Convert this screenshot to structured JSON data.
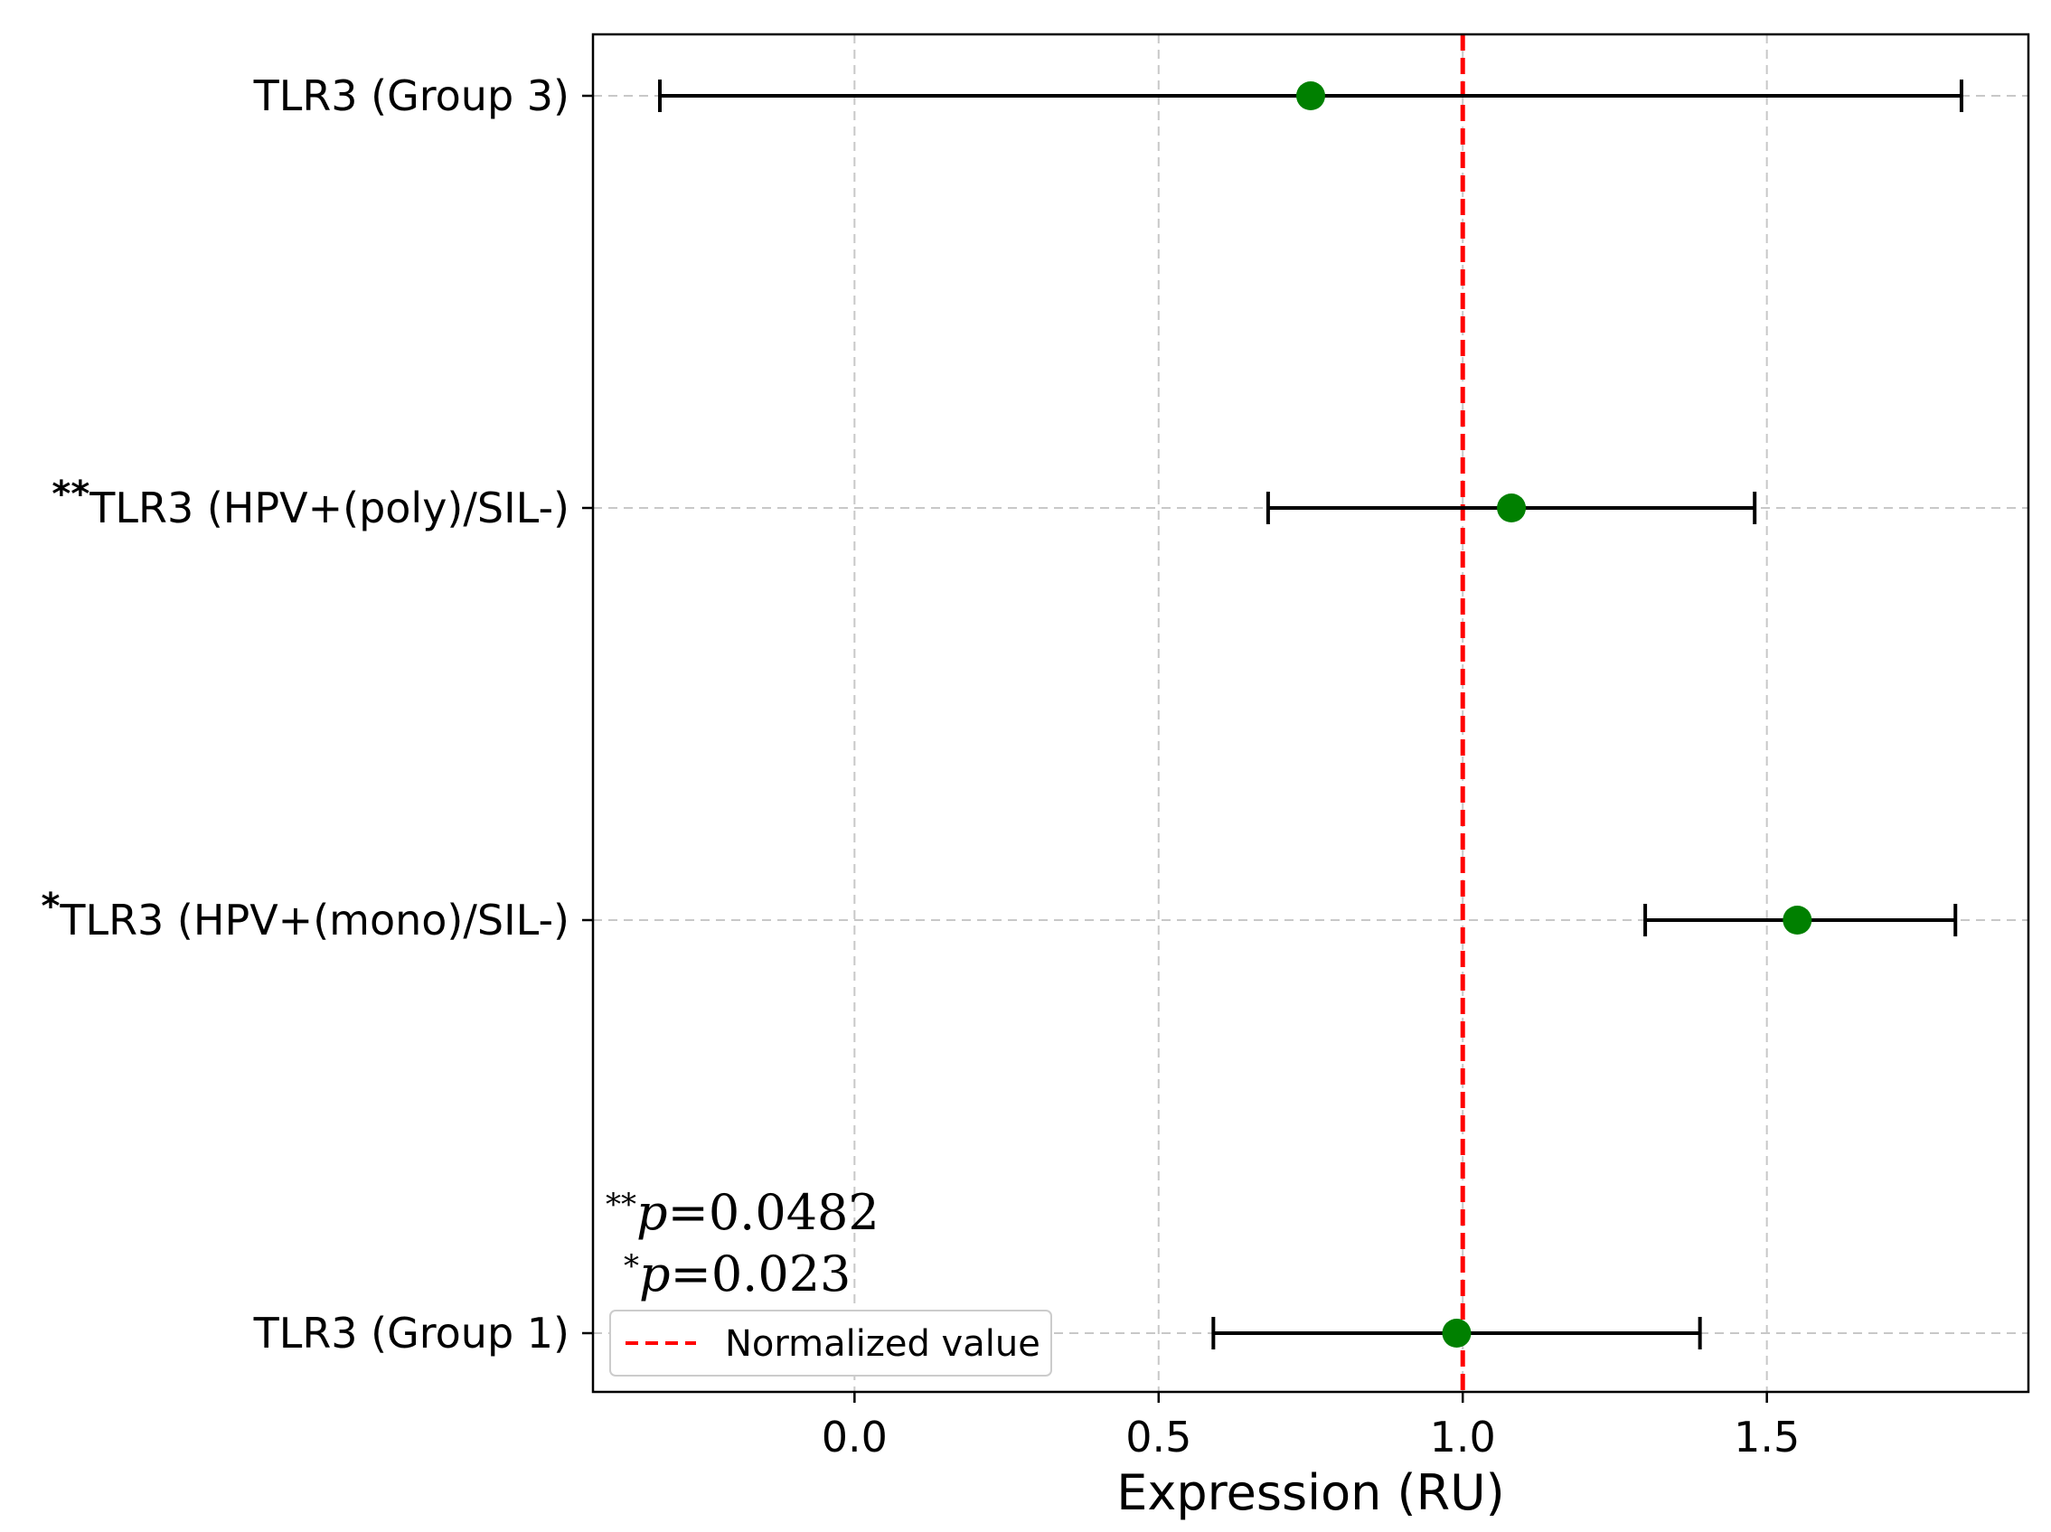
{
  "chart_data": {
    "type": "forest",
    "xlabel": "Expression (RU)",
    "xlim": [
      -0.43,
      1.93
    ],
    "xticks": [
      0.0,
      0.5,
      1.0,
      1.5
    ],
    "xtick_labels": [
      "0.0",
      "0.5",
      "1.0",
      "1.5"
    ],
    "grid": true,
    "reference_line": {
      "x": 1.0,
      "color": "#ff0000",
      "style": "dashed"
    },
    "legend": {
      "placement": "lower-left",
      "label": "Normalized value"
    },
    "point_color": "#008000",
    "errorbar_color": "#000000",
    "categories": [
      {
        "stars": "",
        "label": "TLR3 (Group 1)",
        "value": 0.99,
        "ci": [
          0.59,
          1.39
        ]
      },
      {
        "stars": "*",
        "label": "TLR3 (HPV+(mono)/SIL-)",
        "value": 1.55,
        "ci": [
          1.3,
          1.81
        ]
      },
      {
        "stars": "**",
        "label": "TLR3 (HPV+(poly)/SIL-)",
        "value": 1.08,
        "ci": [
          0.68,
          1.48
        ]
      },
      {
        "stars": "",
        "label": "TLR3 (Group 3)",
        "value": 0.75,
        "ci": [
          -0.32,
          1.82
        ]
      }
    ],
    "annotations": [
      {
        "stars": "**",
        "p_symbol": "p",
        "text": "=0.0482"
      },
      {
        "stars": "*",
        "p_symbol": "p",
        "text": "=0.023"
      }
    ]
  }
}
